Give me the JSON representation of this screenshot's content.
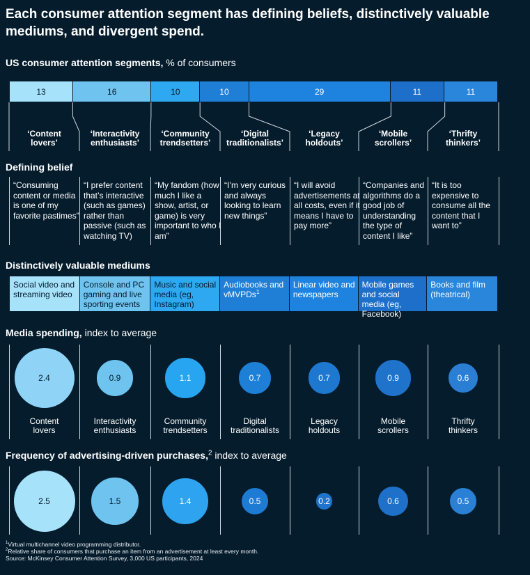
{
  "title": "Each consumer attention segment has defining beliefs, distinctively valuable mediums, and divergent spend.",
  "sections": {
    "segments_bold": "US consumer attention segments,",
    "segments_rest": " % of consumers",
    "belief": "Defining belief",
    "mediums": "Distinctively valuable mediums",
    "spending_bold": "Media spending,",
    "spending_rest": " index to average",
    "frequency_bold": "Frequency of advertising-driven purchases,",
    "frequency_sup": "2",
    "frequency_rest": " index to average"
  },
  "colors": {
    "background": "#051c2c",
    "segment_fills": [
      "#a7e2fb",
      "#6fc3ef",
      "#2ea8f0",
      "#1f7fd6",
      "#1e83df",
      "#1e6fc9",
      "#2a86da"
    ],
    "spend_fills": [
      "#8fd4f7",
      "#6ec4ef",
      "#27a5f0",
      "#1e7fd6",
      "#1e78cf",
      "#1f73cb",
      "#2a7fd4"
    ],
    "freq_fills": [
      "#a7e2fb",
      "#6fc3ef",
      "#2ea3f0",
      "#1e7bd4",
      "#1e73cc",
      "#1e70c9",
      "#2a80d5"
    ],
    "medium_fills": [
      "#a7e2fb",
      "#6fc3ef",
      "#2ea8f0",
      "#1f7fd6",
      "#1e83df",
      "#1e6fc9",
      "#2a86da"
    ]
  },
  "segments": [
    {
      "name": "‘Content lovers’",
      "short": "Content lovers",
      "belief": "“Consuming content or media is one of my favorite pastimes”",
      "medium": "Social video and streaming video",
      "medium_sup": ""
    },
    {
      "name": "‘Interactivity enthusiasts’",
      "short": "Interactivity enthusiasts",
      "belief": "“I prefer content that’s interactive (such as games) rather than passive (such as watching TV)",
      "medium": "Console and PC gaming and live sporting events",
      "medium_sup": ""
    },
    {
      "name": "‘Community trendsetters’",
      "short": "Community trendsetters",
      "belief": "“My fandom (how much I like a show, artist, or game) is very important to who I am”",
      "medium": "Music and social media (eg, Instagram)",
      "medium_sup": ""
    },
    {
      "name": "‘Digital traditionalists’",
      "short": "Digital traditionalists",
      "belief": "“I’m very curious and always looking to learn new things”",
      "medium": "Audiobooks and vMVPDs",
      "medium_sup": "1"
    },
    {
      "name": "‘Legacy holdouts’",
      "short": "Legacy holdouts",
      "belief": "“I will avoid advertisements at all costs, even if it means I have to pay more”",
      "medium": "Linear video and newspapers",
      "medium_sup": ""
    },
    {
      "name": "‘Mobile scrollers’",
      "short": "Mobile scrollers",
      "belief": "“Companies and algorithms do a good job of understanding the type of content I like”",
      "medium": "Mobile games and social media (eg, Facebook)",
      "medium_sup": ""
    },
    {
      "name": "‘Thrifty thinkers’",
      "short": "Thrifty thinkers",
      "belief": "“It is too expensive to consume all the content that I want to”",
      "medium": "Books and film (theatrical)",
      "medium_sup": ""
    }
  ],
  "chart_data": [
    {
      "type": "bar",
      "title": "US consumer attention segments, % of consumers",
      "categories": [
        "Content lovers",
        "Interactivity enthusiasts",
        "Community trendsetters",
        "Digital traditionalists",
        "Legacy holdouts",
        "Mobile scrollers",
        "Thrifty thinkers"
      ],
      "values": [
        13,
        16,
        10,
        10,
        29,
        11,
        11
      ],
      "labels": [
        "13",
        "16",
        "10",
        "10",
        "29",
        "11",
        "11"
      ]
    },
    {
      "type": "scatter",
      "title": "Media spending, index to average",
      "categories": [
        "Content lovers",
        "Interactivity enthusiasts",
        "Community trendsetters",
        "Digital traditionalists",
        "Legacy holdouts",
        "Mobile scrollers",
        "Thrifty thinkers"
      ],
      "values": [
        2.4,
        0.9,
        1.1,
        0.7,
        0.7,
        0.9,
        0.6
      ],
      "labels": [
        "2.4",
        "0.9",
        "1.1",
        "0.7",
        "0.7",
        "0.9",
        "0.6"
      ]
    },
    {
      "type": "scatter",
      "title": "Frequency of advertising-driven purchases, index to average",
      "categories": [
        "Content lovers",
        "Interactivity enthusiasts",
        "Community trendsetters",
        "Digital traditionalists",
        "Legacy holdouts",
        "Mobile scrollers",
        "Thrifty thinkers"
      ],
      "values": [
        2.5,
        1.5,
        1.4,
        0.5,
        0.2,
        0.6,
        0.5
      ],
      "labels": [
        "2.5",
        "1.5",
        "1.4",
        "0.5",
        "0.2",
        "0.6",
        "0.5"
      ]
    }
  ],
  "footnotes": {
    "f1_sup": "1",
    "f1": "Virtual multichannel video programming distributor.",
    "f2_sup": "2",
    "f2": "Relative share of consumers that purchase an item from an advertisement at least every month.",
    "source": "Source: McKinsey Consumer Attention Survey, 3,000 US participants, 2024"
  }
}
